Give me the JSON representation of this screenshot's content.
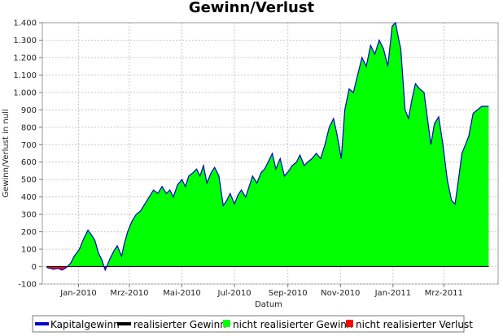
{
  "chart_data": {
    "type": "area",
    "title": "Gewinn/Verlust",
    "xlabel": "Datum",
    "ylabel": "Gewinn/Verlust in null",
    "ylim": [
      -100,
      1400
    ],
    "yticks": [
      -100,
      0,
      100,
      200,
      300,
      400,
      500,
      600,
      700,
      800,
      900,
      1000,
      1100,
      1200,
      1300,
      1400
    ],
    "ytick_labels": [
      "-100",
      "0",
      "100",
      "200",
      "300",
      "400",
      "500",
      "600",
      "700",
      "800",
      "900",
      "1.000",
      "1.100",
      "1.200",
      "1.300",
      "1.400"
    ],
    "xlim": [
      "2009-11-20",
      "2011-05-03"
    ],
    "xticks": [
      "2010-01-01",
      "2010-03-01",
      "2010-05-01",
      "2010-07-01",
      "2010-09-01",
      "2010-11-01",
      "2011-01-01",
      "2011-03-01"
    ],
    "xtick_labels": [
      "Jan-2010",
      "Mrz-2010",
      "Mai-2010",
      "Jul-2010",
      "Sep-2010",
      "Nov-2010",
      "Jan-2011",
      "Mrz-2011"
    ],
    "grid": true,
    "legend_position": "bottom",
    "series": [
      {
        "name": "Kapitalgewinn",
        "color": "#0000cc",
        "x": [
          "2009-11-25",
          "2009-12-03",
          "2009-12-08",
          "2009-12-13",
          "2009-12-18",
          "2009-12-23",
          "2009-12-27",
          "2010-01-02",
          "2010-01-07",
          "2010-01-12",
          "2010-01-17",
          "2010-01-20",
          "2010-01-24",
          "2010-01-28",
          "2010-02-01",
          "2010-02-06",
          "2010-02-11",
          "2010-02-15",
          "2010-02-20",
          "2010-02-23",
          "2010-02-27",
          "2010-03-04",
          "2010-03-09",
          "2010-03-14",
          "2010-03-19",
          "2010-03-24",
          "2010-03-29",
          "2010-04-03",
          "2010-04-08",
          "2010-04-13",
          "2010-04-17",
          "2010-04-21",
          "2010-04-26",
          "2010-05-01",
          "2010-05-05",
          "2010-05-09",
          "2010-05-14",
          "2010-05-18",
          "2010-05-22",
          "2010-05-26",
          "2010-05-30",
          "2010-06-04",
          "2010-06-08",
          "2010-06-13",
          "2010-06-18",
          "2010-06-22",
          "2010-06-26",
          "2010-07-01",
          "2010-07-05",
          "2010-07-09",
          "2010-07-14",
          "2010-07-18",
          "2010-07-22",
          "2010-07-27",
          "2010-08-01",
          "2010-08-05",
          "2010-08-09",
          "2010-08-14",
          "2010-08-18",
          "2010-08-23",
          "2010-08-28",
          "2010-09-02",
          "2010-09-06",
          "2010-09-11",
          "2010-09-15",
          "2010-09-20",
          "2010-09-24",
          "2010-09-29",
          "2010-10-04",
          "2010-10-09",
          "2010-10-14",
          "2010-10-19",
          "2010-10-24",
          "2010-10-28",
          "2010-11-02",
          "2010-11-06",
          "2010-11-11",
          "2010-11-16",
          "2010-11-21",
          "2010-11-26",
          "2010-12-01",
          "2010-12-06",
          "2010-12-11",
          "2010-12-16",
          "2010-12-21",
          "2010-12-26",
          "2010-12-31",
          "2011-01-04",
          "2011-01-07",
          "2011-01-10",
          "2011-01-15",
          "2011-01-19",
          "2011-01-23",
          "2011-01-27",
          "2011-02-01",
          "2011-02-06",
          "2011-02-10",
          "2011-02-14",
          "2011-02-18",
          "2011-02-23",
          "2011-02-28",
          "2011-03-05",
          "2011-03-10",
          "2011-03-14",
          "2011-03-18",
          "2011-03-22",
          "2011-03-26",
          "2011-03-30",
          "2011-04-04",
          "2011-04-09",
          "2011-04-14",
          "2011-04-18",
          "2011-04-22"
        ],
        "values": [
          -5,
          -15,
          -10,
          -20,
          -5,
          20,
          60,
          100,
          160,
          210,
          175,
          150,
          80,
          40,
          -20,
          40,
          90,
          120,
          60,
          130,
          200,
          260,
          300,
          320,
          360,
          400,
          440,
          420,
          460,
          420,
          440,
          400,
          470,
          500,
          460,
          520,
          540,
          560,
          520,
          580,
          480,
          540,
          570,
          520,
          350,
          380,
          420,
          360,
          410,
          440,
          400,
          460,
          520,
          480,
          540,
          560,
          600,
          650,
          560,
          620,
          520,
          550,
          580,
          600,
          640,
          580,
          600,
          620,
          650,
          620,
          700,
          800,
          850,
          760,
          620,
          900,
          1020,
          1000,
          1100,
          1200,
          1150,
          1270,
          1220,
          1300,
          1250,
          1150,
          1380,
          1400,
          1320,
          1250,
          900,
          850,
          960,
          1050,
          1020,
          1000,
          850,
          700,
          820,
          860,
          700,
          500,
          380,
          360,
          500,
          650,
          700,
          750,
          880,
          900,
          920,
          920,
          920
        ]
      },
      {
        "name": "realisierter Gewinn",
        "color": "#000000",
        "x": [
          "2009-11-25",
          "2011-04-22"
        ],
        "values": [
          0,
          0
        ]
      },
      {
        "name": "nicht realisierter Gewinn",
        "color": "#00ff00"
      },
      {
        "name": "nicht realisierter Verlust",
        "color": "#ff0000"
      }
    ]
  }
}
